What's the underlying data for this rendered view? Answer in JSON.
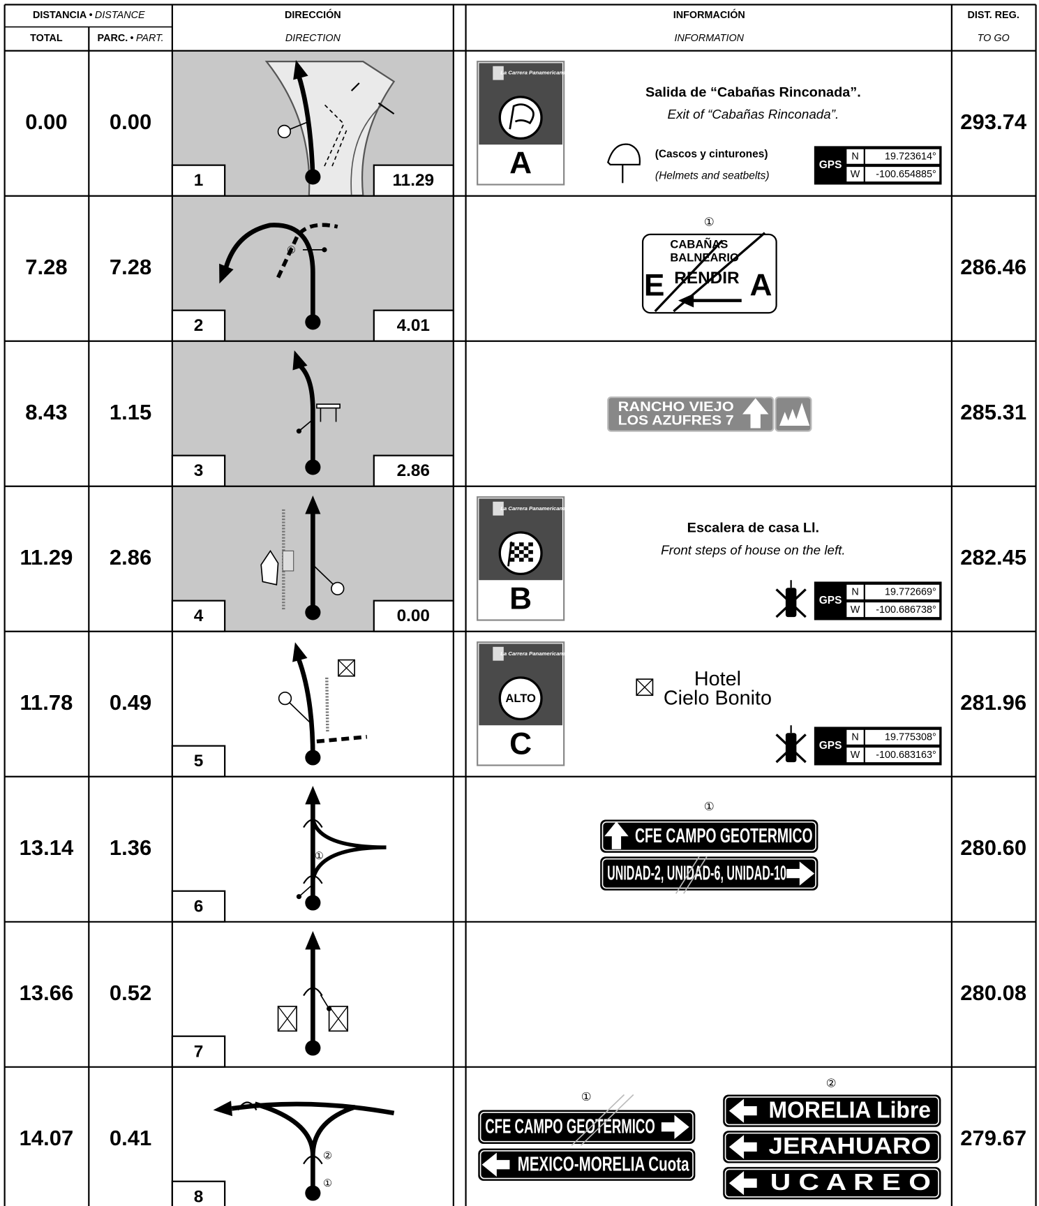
{
  "header": {
    "distance": "DISTANCIA",
    "separator": "•",
    "distance_en": "DISTANCE",
    "direction": "DIRECCIÓN",
    "information": "INFORMACIÓN",
    "to_go": "DIST. REG.",
    "total": "TOTAL",
    "partial": "PARC.",
    "partial_en": "PART.",
    "direction_en": "DIRECTION",
    "information_en": "INFORMATION",
    "to_go_en": "TO GO"
  },
  "rows": [
    {
      "total": "0.00",
      "partial": "0.00",
      "number": "1",
      "box_distance": "11.29",
      "to_go": "293.74",
      "info": {
        "checkpoint": {
          "logo": "La Carrera Panamericana",
          "letter": "A"
        },
        "title": "Salida de “Cabañas Rinconada”.",
        "subtitle": "Exit of “Cabañas Rinconada”.",
        "note": "(Cascos y cinturones)",
        "note_en": "(Helmets and seatbelts)",
        "gps": {
          "label": "GPS",
          "n_label": "N",
          "n": "19.723614°",
          "w_label": "W",
          "w": "-100.654885°"
        }
      }
    },
    {
      "total": "7.28",
      "partial": "7.28",
      "number": "2",
      "box_distance": "4.01",
      "to_go": "286.46",
      "diagram_labels": [
        "①"
      ],
      "info": {
        "sign": {
          "ref": "①",
          "lines": [
            "CABAÑAS",
            "BALNEARIO"
          ],
          "left": "E",
          "center": "RENDIR",
          "right": "A"
        }
      }
    },
    {
      "total": "8.43",
      "partial": "1.15",
      "number": "3",
      "box_distance": "2.86",
      "to_go": "285.31",
      "info": {
        "sign": {
          "lines": [
            "RANCHO VIEJO",
            "LOS AZUFRES 7"
          ]
        }
      }
    },
    {
      "total": "11.29",
      "partial": "2.86",
      "number": "4",
      "box_distance": "0.00",
      "to_go": "282.45",
      "info": {
        "checkpoint": {
          "logo": "La Carrera Panamericana",
          "letter": "B"
        },
        "title": "Escalera de casa Ll.",
        "subtitle": "Front steps of house on the left.",
        "gps": {
          "label": "GPS",
          "n_label": "N",
          "n": "19.772669°",
          "w_label": "W",
          "w": "-100.686738°"
        }
      }
    },
    {
      "total": "11.78",
      "partial": "0.49",
      "number": "5",
      "to_go": "281.96",
      "info": {
        "checkpoint": {
          "logo": "La Carrera Panamericana",
          "letter": "C",
          "icon_text": "ALTO"
        },
        "hotel": [
          "Hotel",
          "Cielo Bonito"
        ],
        "gps": {
          "label": "GPS",
          "n_label": "N",
          "n": "19.775308°",
          "w_label": "W",
          "w": "-100.683163°"
        }
      }
    },
    {
      "total": "13.14",
      "partial": "1.36",
      "number": "6",
      "to_go": "280.60",
      "diagram_labels": [
        "①"
      ],
      "info": {
        "sign_groups": [
          {
            "ref": "①",
            "panels": [
              "CFE CAMPO GEOTERMICO",
              "UNIDAD-2, UNIDAD-6, UNIDAD-10"
            ]
          }
        ]
      }
    },
    {
      "total": "13.66",
      "partial": "0.52",
      "number": "7",
      "to_go": "280.08"
    },
    {
      "total": "14.07",
      "partial": "0.41",
      "number": "8",
      "to_go": "279.67",
      "diagram_labels": [
        "②",
        "①"
      ],
      "info": {
        "sign_groups": [
          {
            "ref": "①",
            "panels": [
              "CFE CAMPO GEOTERMICO",
              "MEXICO-MORELIA Cuota"
            ]
          },
          {
            "ref": "②",
            "panels": [
              "MORELIA Libre",
              "JERAHUARO",
              "U C A R E O"
            ]
          }
        ]
      }
    }
  ]
}
